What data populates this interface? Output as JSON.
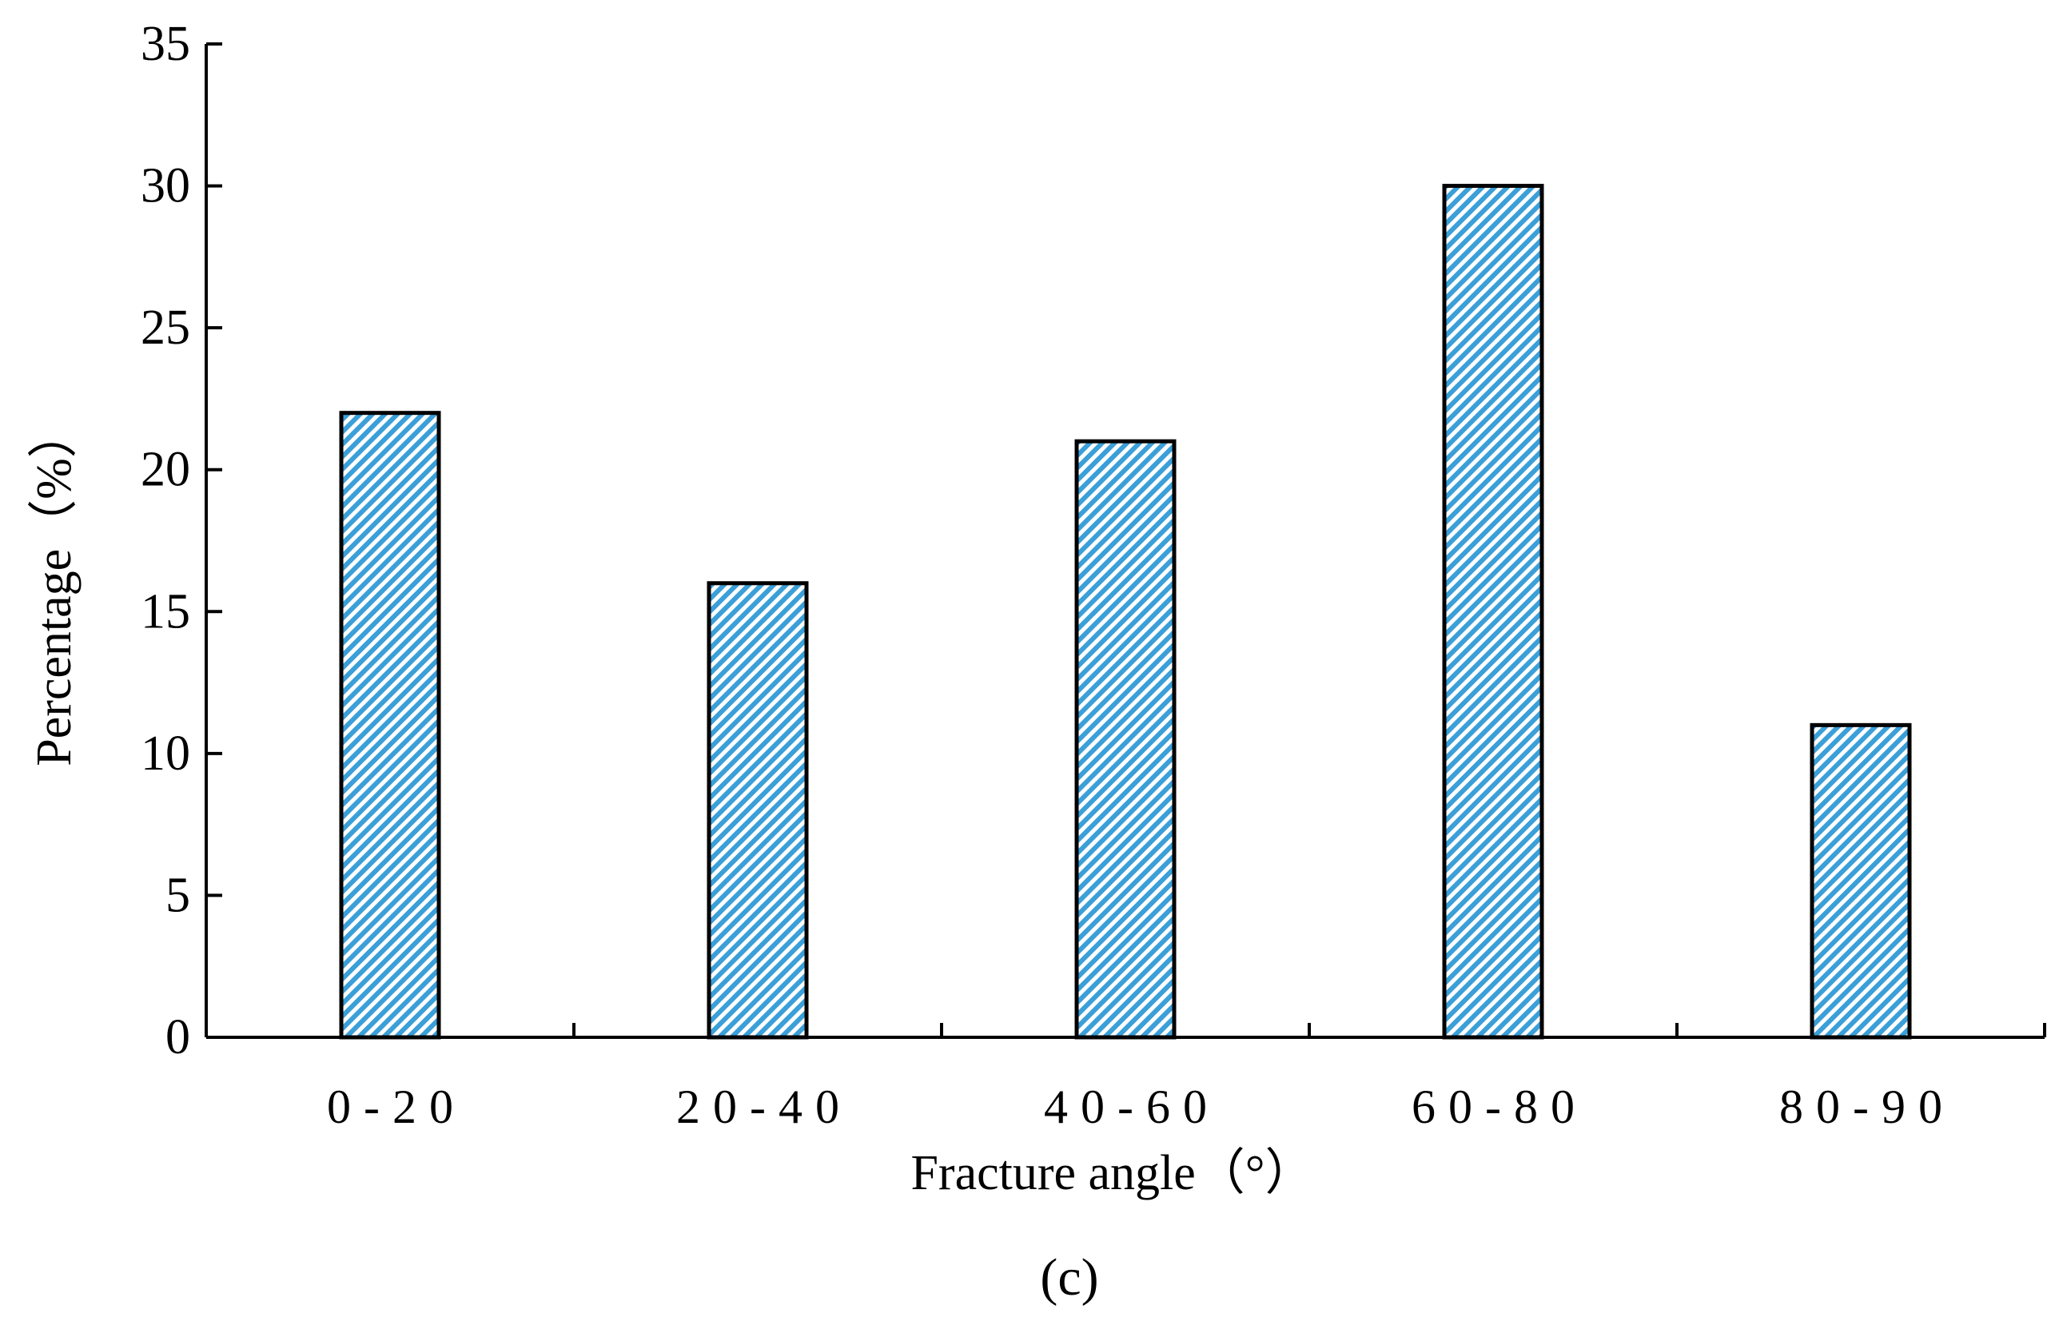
{
  "chart_data": {
    "type": "bar",
    "categories": [
      "0-20",
      "20-40",
      "40-60",
      "60-80",
      "80-90"
    ],
    "values": [
      22,
      16,
      21,
      30,
      11
    ],
    "xlabel": "Fracture angle（°）",
    "ylabel": "Percentage（%）",
    "ylim": [
      0,
      35
    ],
    "yticks": [
      0,
      5,
      10,
      15,
      20,
      25,
      30,
      35
    ],
    "grid": false,
    "legend": "none",
    "bar_fill_color": "#3b9fd8",
    "bar_edge_color": "#000000",
    "bar_pattern": "diagonal-hatch"
  },
  "panel_label": "(c)"
}
